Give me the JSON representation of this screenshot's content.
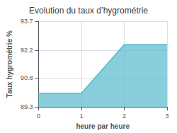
{
  "chart_data": {
    "type": "area",
    "title": "Evolution du taux d’hygrométrie",
    "xlabel": "heure par heure",
    "ylabel": "Taux hygrométrie %",
    "x": [
      0,
      1,
      2,
      3
    ],
    "values": [
      90.0,
      90.0,
      92.5,
      92.5
    ],
    "color": "#55bbcc",
    "xlim": [
      0,
      3
    ],
    "xticks": [
      0,
      1,
      2,
      3
    ],
    "ylim": [
      89.3,
      93.7
    ],
    "yticks": [
      89.3,
      90.8,
      92.2,
      93.7
    ],
    "grid": true
  }
}
